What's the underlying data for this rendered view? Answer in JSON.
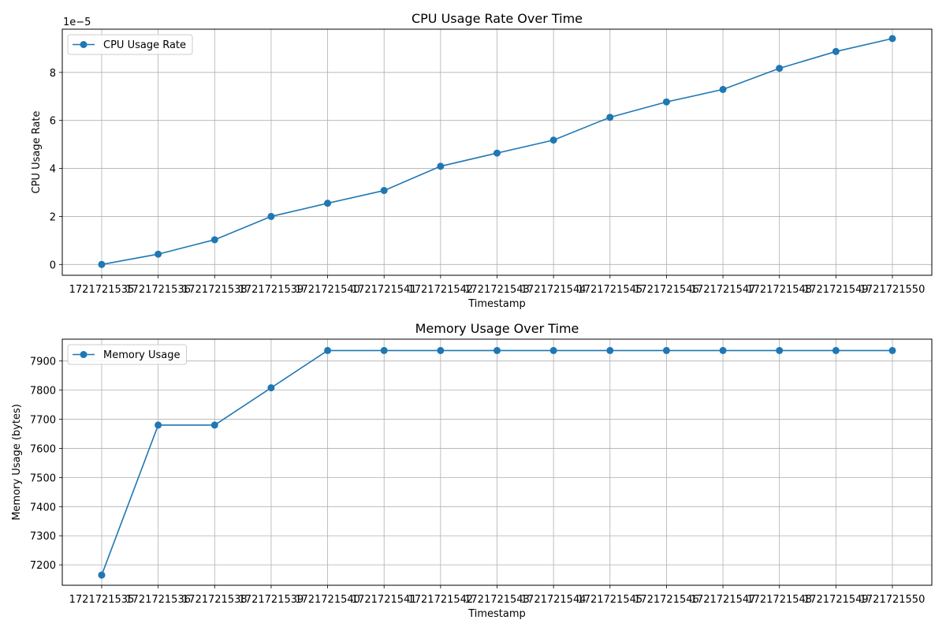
{
  "chart_data": [
    {
      "type": "line",
      "title": "CPU Usage Rate Over Time",
      "xlabel": "Timestamp",
      "ylabel": "CPU Usage Rate",
      "offset_text": "1e−5",
      "categories": [
        "1721721535",
        "1721721536",
        "1721721538",
        "1721721539",
        "1721721540",
        "1721721541",
        "1721721542",
        "1721721543",
        "1721721544",
        "1721721545",
        "1721721546",
        "1721721547",
        "1721721548",
        "1721721549",
        "1721721550"
      ],
      "y_ticks": [
        "0",
        "2",
        "4",
        "6",
        "8"
      ],
      "ylim": [
        -0.45,
        9.8
      ],
      "series": [
        {
          "name": "CPU Usage Rate",
          "values": [
            0.0,
            0.43,
            1.03,
            2.0,
            2.55,
            3.08,
            4.09,
            4.64,
            5.18,
            6.13,
            6.77,
            7.29,
            8.17,
            8.87,
            9.41
          ]
        }
      ],
      "legend": "top-left",
      "grid": true,
      "color": "#1f77b4"
    },
    {
      "type": "line",
      "title": "Memory Usage Over Time",
      "xlabel": "Timestamp",
      "ylabel": "Memory Usage (bytes)",
      "categories": [
        "1721721535",
        "1721721536",
        "1721721538",
        "1721721539",
        "1721721540",
        "1721721541",
        "1721721542",
        "1721721543",
        "1721721544",
        "1721721545",
        "1721721546",
        "1721721547",
        "1721721548",
        "1721721549",
        "1721721550"
      ],
      "y_ticks": [
        "7200",
        "7300",
        "7400",
        "7500",
        "7600",
        "7700",
        "7800",
        "7900"
      ],
      "ylim": [
        7130,
        7975
      ],
      "series": [
        {
          "name": "Memory Usage",
          "values": [
            7165,
            7680,
            7680,
            7808,
            7936,
            7936,
            7936,
            7936,
            7936,
            7936,
            7936,
            7936,
            7936,
            7936,
            7936
          ]
        }
      ],
      "legend": "top-left",
      "grid": true,
      "color": "#1f77b4"
    }
  ]
}
